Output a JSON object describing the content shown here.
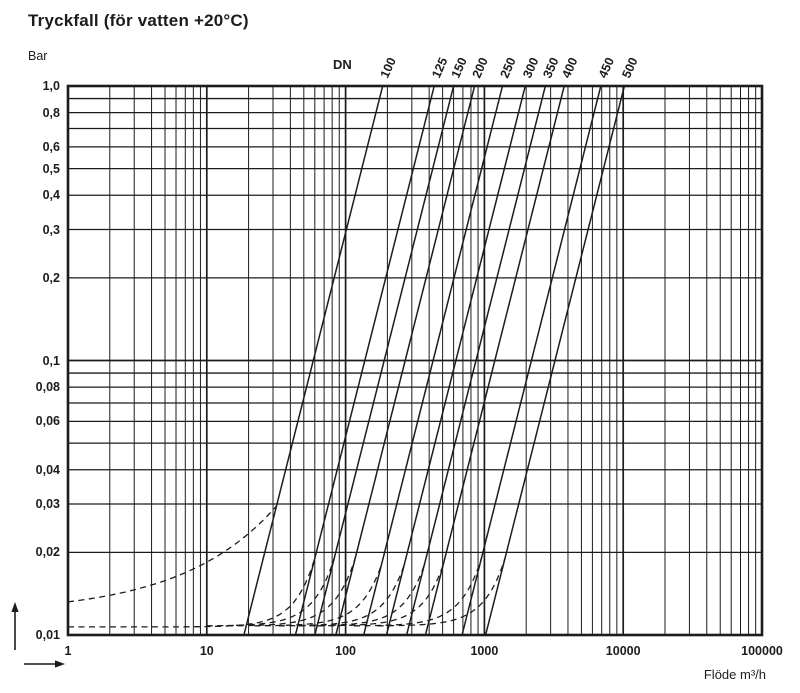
{
  "title": "Tryckfall (för vatten +20°C)",
  "y_axis_unit": "Bar",
  "dn_header": "DN",
  "x_axis_label": "Flöde m³/h",
  "colors": {
    "ink": "#1c1c1c",
    "background": "#ffffff"
  },
  "chart_data": {
    "type": "line",
    "title": "Tryckfall (för vatten +20°C)",
    "xlabel": "Flöde m³/h",
    "ylabel": "Bar",
    "x_scale": "log",
    "y_scale": "log",
    "xlim": [
      1,
      100000
    ],
    "ylim": [
      0.01,
      1.0
    ],
    "grid": "full log grid, minor lines 2-9 each decade on both axes",
    "legend_position": "series labels rotated above top axis",
    "x_ticks": [
      {
        "value": 1,
        "label": "1"
      },
      {
        "value": 10,
        "label": "10"
      },
      {
        "value": 100,
        "label": "100"
      },
      {
        "value": 1000,
        "label": "1000"
      },
      {
        "value": 10000,
        "label": "10000"
      },
      {
        "value": 100000,
        "label": "100000"
      }
    ],
    "y_ticks": [
      {
        "value": 1.0,
        "label": "1,0"
      },
      {
        "value": 0.8,
        "label": "0,8"
      },
      {
        "value": 0.6,
        "label": "0,6"
      },
      {
        "value": 0.5,
        "label": "0,5"
      },
      {
        "value": 0.4,
        "label": "0,4"
      },
      {
        "value": 0.3,
        "label": "0,3"
      },
      {
        "value": 0.2,
        "label": "0,2"
      },
      {
        "value": 0.1,
        "label": "0,1"
      },
      {
        "value": 0.08,
        "label": "0,08"
      },
      {
        "value": 0.06,
        "label": "0,06"
      },
      {
        "value": 0.04,
        "label": "0,04"
      },
      {
        "value": 0.03,
        "label": "0,03"
      },
      {
        "value": 0.02,
        "label": "0,02"
      },
      {
        "value": 0.01,
        "label": "0,01"
      }
    ],
    "series_label_prefix": "DN",
    "series_model": "solid line: dp_bar = (Q / flow_at_1bar_m3h)^2 from 0.01 to 1.0 bar; dashed curve: low-flow branch from (q_start, p_start_bar) rising to meet the solid line at p_merge_bar",
    "series": [
      {
        "name": "100",
        "flow_at_1bar_m3h": 185,
        "dashed": {
          "q_start": 1,
          "p_start_bar": 0.0132,
          "p_merge_bar": 0.0295,
          "knee": 2.2
        }
      },
      {
        "name": "125",
        "flow_at_1bar_m3h": 435,
        "dashed": {
          "q_start": 1,
          "p_start_bar": 0.0107,
          "p_merge_bar": 0.019,
          "knee": 12
        }
      },
      {
        "name": "150",
        "flow_at_1bar_m3h": 600,
        "dashed": {
          "q_start": 10,
          "p_start_bar": 0.0108,
          "p_merge_bar": 0.019,
          "knee": 6
        }
      },
      {
        "name": "200",
        "flow_at_1bar_m3h": 850,
        "dashed": {
          "q_start": 14,
          "p_start_bar": 0.0108,
          "p_merge_bar": 0.019,
          "knee": 6
        }
      },
      {
        "name": "250",
        "flow_at_1bar_m3h": 1350,
        "dashed": {
          "q_start": 22,
          "p_start_bar": 0.0108,
          "p_merge_bar": 0.018,
          "knee": 6
        }
      },
      {
        "name": "300",
        "flow_at_1bar_m3h": 1970,
        "dashed": {
          "q_start": 33,
          "p_start_bar": 0.0108,
          "p_merge_bar": 0.018,
          "knee": 6
        }
      },
      {
        "name": "350",
        "flow_at_1bar_m3h": 2750,
        "dashed": {
          "q_start": 46,
          "p_start_bar": 0.0108,
          "p_merge_bar": 0.018,
          "knee": 6
        }
      },
      {
        "name": "400",
        "flow_at_1bar_m3h": 3760,
        "dashed": {
          "q_start": 63,
          "p_start_bar": 0.0108,
          "p_merge_bar": 0.018,
          "knee": 6
        }
      },
      {
        "name": "450",
        "flow_at_1bar_m3h": 6900,
        "dashed": {
          "q_start": 115,
          "p_start_bar": 0.0108,
          "p_merge_bar": 0.019,
          "knee": 6
        }
      },
      {
        "name": "500",
        "flow_at_1bar_m3h": 10200,
        "dashed": {
          "q_start": 170,
          "p_start_bar": 0.0108,
          "p_merge_bar": 0.019,
          "knee": 6
        }
      }
    ],
    "axis_direction_arrows": {
      "y": "up",
      "x": "right"
    }
  }
}
